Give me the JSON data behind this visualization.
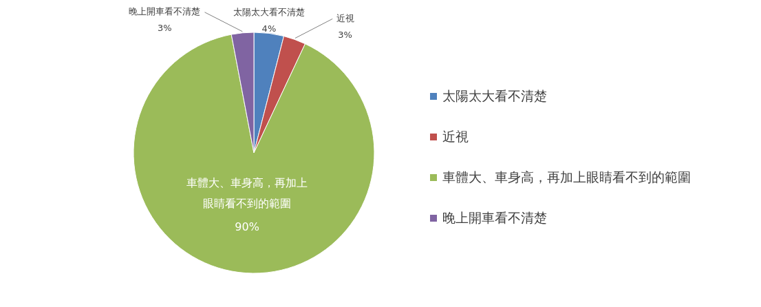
{
  "chart_data": {
    "type": "pie",
    "categories": [
      "太陽太大看不清楚",
      "近視",
      "車體大、車身高，再加上眼睛看不到的範圍",
      "晚上開車看不清楚"
    ],
    "values": [
      4,
      3,
      90,
      3
    ],
    "value_labels": [
      "4%",
      "3%",
      "90%",
      "3%"
    ],
    "colors": [
      "#4f81bd",
      "#c0504d",
      "#9bbb59",
      "#8064a2"
    ],
    "legend": "right"
  }
}
